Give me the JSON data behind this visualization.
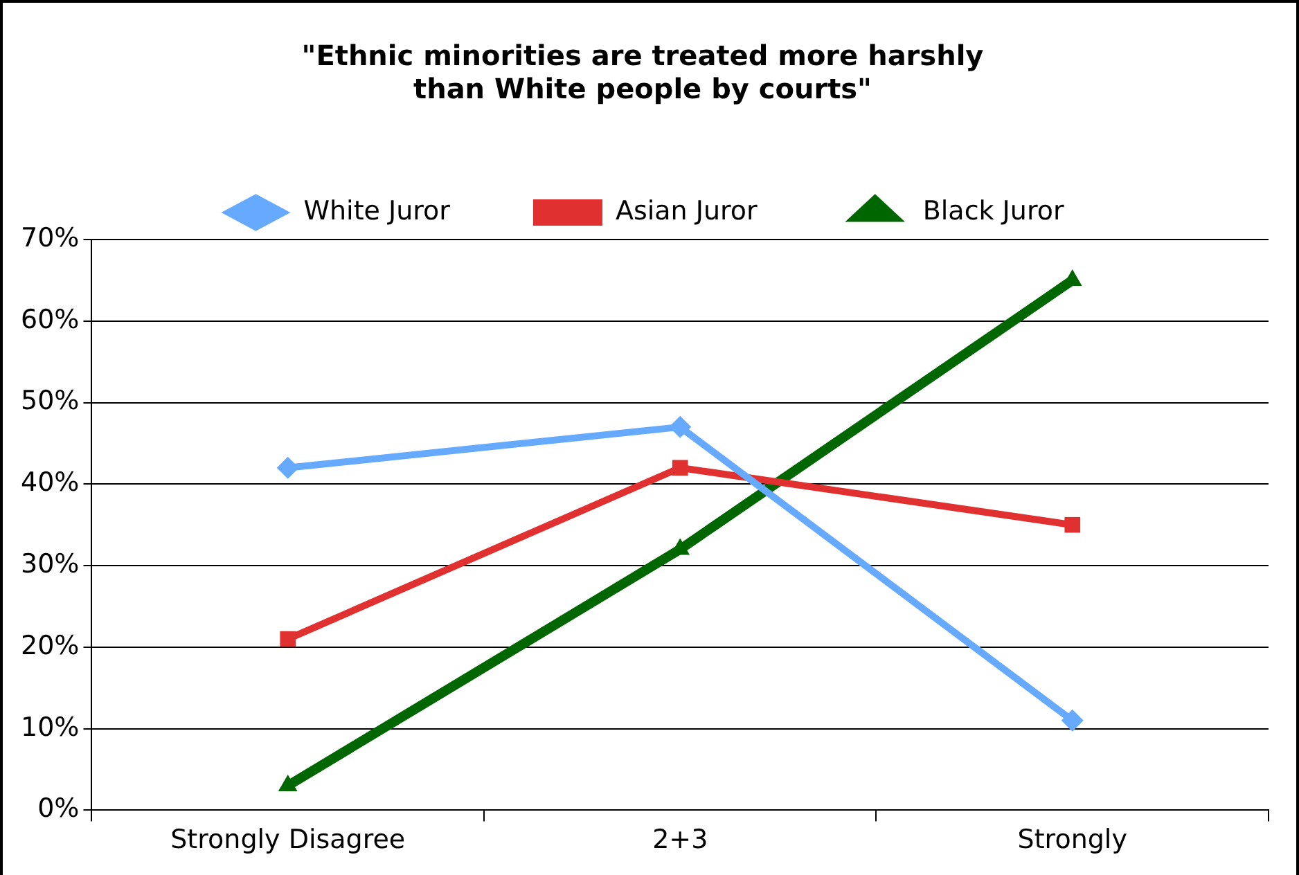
{
  "chart_data": {
    "type": "line",
    "title": "\"Ethnic minorities are treated more harshly\nthan White people by courts\"",
    "categories": [
      "Strongly Disagree",
      "2+3",
      "Strongly"
    ],
    "series": [
      {
        "name": "White Juror",
        "color": "#66aaff",
        "marker": "diamond",
        "values": [
          42,
          47,
          11
        ]
      },
      {
        "name": "Asian Juror",
        "color": "#e03030",
        "marker": "square",
        "values": [
          21,
          42,
          35
        ]
      },
      {
        "name": "Black Juror",
        "color": "#006600",
        "marker": "triangle",
        "values": [
          3,
          32,
          65
        ]
      }
    ],
    "ylim": [
      0,
      70
    ],
    "yticks": [
      {
        "value": 0,
        "label": "0%"
      },
      {
        "value": 10,
        "label": "10%"
      },
      {
        "value": 20,
        "label": "20%"
      },
      {
        "value": 30,
        "label": "30%"
      },
      {
        "value": 40,
        "label": "40%"
      },
      {
        "value": 50,
        "label": "50%"
      },
      {
        "value": 60,
        "label": "60%"
      },
      {
        "value": 70,
        "label": "70%"
      }
    ],
    "grid": "y",
    "legend": "top",
    "line_style": "solid"
  }
}
